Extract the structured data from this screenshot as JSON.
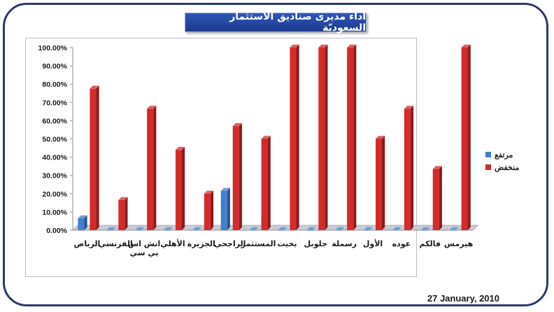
{
  "chart_data": {
    "type": "bar",
    "title": "اداء مديرى صناديق الاستثمار السعوديّة",
    "categories": [
      "الرياض",
      "الفرنسي",
      "اتش اس بي سي",
      "الأهلي",
      "الجزيرة",
      "الراجحي",
      "المستثمر",
      "بخيت",
      "جلوبل",
      "رسملة",
      "الأول",
      "عوده",
      "فالكم",
      "هيرمس"
    ],
    "series": [
      {
        "name": "مرتفع",
        "color": "#3f7fcf",
        "values": [
          0.065,
          0.0,
          0.0,
          0.0,
          0.0,
          0.215,
          0.0,
          0.0,
          0.0,
          0.0,
          0.0,
          0.0,
          0.0,
          0.0
        ]
      },
      {
        "name": "منخفض",
        "color": "#d42a2a",
        "values": [
          0.775,
          0.165,
          0.665,
          0.44,
          0.2,
          0.57,
          0.5,
          1.0,
          1.0,
          1.0,
          0.5,
          0.665,
          0.335,
          1.0
        ]
      }
    ],
    "yticks": [
      "0.00%",
      "10.00%",
      "20.00%",
      "30.00%",
      "40.00%",
      "50.00%",
      "60.00%",
      "70.00%",
      "80.00%",
      "90.00%",
      "100.00%"
    ],
    "ylim": [
      0,
      1.0
    ],
    "legend_position": "right",
    "grid": false
  },
  "date": "27 January, 2010"
}
